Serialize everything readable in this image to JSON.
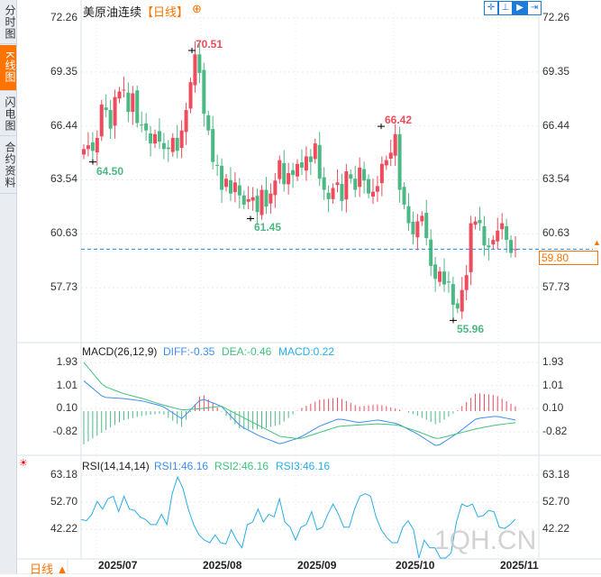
{
  "sidebar": {
    "tabs": [
      {
        "label": "分时图",
        "active": false
      },
      {
        "label": "K线图",
        "active": true
      },
      {
        "label": "闪电图",
        "active": false
      },
      {
        "label": "合约资料",
        "active": false
      }
    ]
  },
  "header": {
    "title": "美原油连续",
    "period": "【日线】",
    "zoom_icon": "plus-circle-icon"
  },
  "toolbar": {
    "icons": [
      "crosshair-icon",
      "range-icon",
      "play-icon",
      "exit-icon"
    ]
  },
  "colors": {
    "up": "#ee4b5c",
    "down": "#4cb883",
    "diff": "#3d8ef0",
    "dea": "#3fc27c",
    "rsi": "#29aee6",
    "accent": "#ff7300",
    "current": "#1e88ff"
  },
  "chart_data": {
    "type": "candlestick",
    "price_axis": {
      "ticks": [
        "72.26",
        "69.35",
        "66.44",
        "63.54",
        "60.63",
        "57.73"
      ],
      "ylim": [
        57.73,
        72.26
      ]
    },
    "x_ticks": [
      "2025/07",
      "2025/08",
      "2025/09",
      "2025/10",
      "2025/11"
    ],
    "closes": [
      65.2,
      65.4,
      65.1,
      65.8,
      67.6,
      67.3,
      66.3,
      68.0,
      68.3,
      68.4,
      67.2,
      68.2,
      66.6,
      66.5,
      66.2,
      65.5,
      66.0,
      65.6,
      65.2,
      65.2,
      65.8,
      65.1,
      66.2,
      67.3,
      68.8,
      70.3,
      69.3,
      67.1,
      66.2,
      64.5,
      64.3,
      63.0,
      63.6,
      62.8,
      63.4,
      62.7,
      62.2,
      62.5,
      62.6,
      61.8,
      63.0,
      62.1,
      62.8,
      63.5,
      64.6,
      63.3,
      63.9,
      63.8,
      64.4,
      64.2,
      64.8,
      64.5,
      65.5,
      63.6,
      63.0,
      62.5,
      63.1,
      63.4,
      62.4,
      64.0,
      63.6,
      63.0,
      64.2,
      63.5,
      62.8,
      62.9,
      63.2,
      64.4,
      64.6,
      65.0,
      66.0,
      63.0,
      62.2,
      61.2,
      60.6,
      61.3,
      61.6,
      60.4,
      58.9,
      58.2,
      58.6,
      57.9,
      58.0,
      56.8,
      56.6,
      57.6,
      58.4,
      61.2,
      61.3,
      61.2,
      60.0,
      59.9,
      60.3,
      60.8,
      61.2,
      60.3,
      59.6,
      59.8
    ],
    "annotations": [
      {
        "label": "70.51",
        "price": 70.51,
        "type": "high"
      },
      {
        "label": "64.50",
        "price": 64.5,
        "type": "low"
      },
      {
        "label": "61.45",
        "price": 61.45,
        "type": "low"
      },
      {
        "label": "66.42",
        "price": 66.42,
        "type": "high"
      },
      {
        "label": "55.96",
        "price": 55.96,
        "type": "low"
      }
    ],
    "current_price": "59.80",
    "macd": {
      "title": "MACD(26,12,9)",
      "diff_label": "DIFF:-0.35",
      "dea_label": "DEA:-0.46",
      "macd_label": "MACD:0.22",
      "ticks": [
        "1.93",
        "1.01",
        "0.10",
        "-0.82"
      ],
      "ylim": [
        -1.6,
        2.1
      ],
      "diff": [
        1.2,
        0.55,
        0.5,
        0.4,
        0.2,
        -0.3,
        0.5,
        0.2,
        -0.6,
        -1.0,
        -1.3,
        -1.05,
        -0.6,
        -0.3,
        -0.45,
        -0.35,
        -0.5,
        -0.9,
        -1.4,
        -0.9,
        -0.3,
        -0.2,
        -0.35
      ],
      "dea": [
        1.93,
        1.0,
        0.7,
        0.5,
        0.25,
        0.05,
        0.1,
        0.2,
        -0.2,
        -0.6,
        -1.0,
        -1.1,
        -0.85,
        -0.6,
        -0.55,
        -0.5,
        -0.55,
        -0.8,
        -1.1,
        -0.9,
        -0.7,
        -0.55,
        -0.46
      ]
    },
    "rsi": {
      "title": "RSI(14,14,14)",
      "rsi1_label": "RSI1:46.16",
      "rsi2_label": "RSI2:46.16",
      "rsi3_label": "RSI3:46.16",
      "ticks": [
        "63.18",
        "52.70",
        "42.22"
      ],
      "ylim": [
        32,
        68
      ],
      "values": [
        46,
        45.5,
        48,
        53,
        50,
        54,
        55,
        49,
        55,
        50,
        49.5,
        47,
        46,
        44,
        44,
        48,
        44,
        56,
        62.5,
        58,
        50,
        44,
        40,
        38,
        37,
        40,
        37,
        36.5,
        42,
        38,
        35,
        44,
        45,
        50,
        45,
        48,
        47,
        54,
        45,
        43,
        38,
        43,
        44,
        49,
        42,
        43,
        48,
        52,
        48,
        43,
        43,
        50,
        55,
        56,
        55,
        47,
        42,
        39,
        37,
        37,
        43,
        45.5,
        42,
        30,
        38,
        35,
        35,
        31,
        31,
        33,
        45,
        52,
        51,
        52,
        47,
        47.5,
        49.5,
        49,
        43,
        42.5,
        44,
        46.16
      ]
    }
  },
  "bottom": {
    "period_button": "日线 ▲",
    "watermark": "1QH.CN"
  }
}
